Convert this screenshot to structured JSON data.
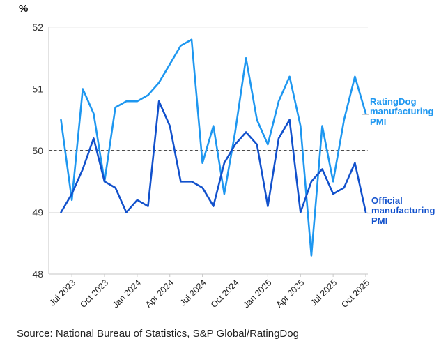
{
  "header": {
    "unit_label": "%"
  },
  "source": {
    "text": "Source: National Bureau of Statistics, S&P Global/RatingDog"
  },
  "colors": {
    "ratingdog_blue": "#1e97f0",
    "official_blue": "#1251cc",
    "threshold_dash": "#111111",
    "gridline": "#e8e8e8",
    "spine": "#c6c6c6",
    "ytick_text": "#333333",
    "xtick_text": "#1c1c1c"
  },
  "chart_data": {
    "type": "line",
    "title": "",
    "ylabel": "%",
    "xlabel": "",
    "ylim": [
      48,
      52
    ],
    "grid": true,
    "threshold": 50,
    "legend_position": "right-annotations",
    "yticks": [
      48,
      49,
      50,
      51,
      52
    ],
    "x": [
      "Jun 2023",
      "Jul 2023",
      "Aug 2023",
      "Sep 2023",
      "Oct 2023",
      "Nov 2023",
      "Dec 2023",
      "Jan 2024",
      "Feb 2024",
      "Mar 2024",
      "Apr 2024",
      "May 2024",
      "Jun 2024",
      "Jul 2024",
      "Aug 2024",
      "Sep 2024",
      "Oct 2024",
      "Nov 2024",
      "Dec 2024",
      "Jan 2025",
      "Feb 2025",
      "Mar 2025",
      "Apr 2025",
      "May 2025",
      "Jun 2025",
      "Jul 2025",
      "Aug 2025",
      "Sep 2025",
      "Oct 2025"
    ],
    "xtick_labels": [
      "Jul 2023",
      "Oct 2023",
      "Jan 2024",
      "Apr 2024",
      "Jul 2024",
      "Oct 2024",
      "Jan 2025",
      "Apr 2025",
      "Jul 2025",
      "Oct 2025"
    ],
    "xtick_indices": [
      1,
      4,
      7,
      10,
      13,
      16,
      19,
      22,
      25,
      28
    ],
    "series": [
      {
        "name": "RatingDog manufacturing PMI",
        "color": "#1e97f0",
        "values": [
          50.5,
          49.2,
          51.0,
          50.6,
          49.5,
          50.7,
          50.8,
          50.8,
          50.9,
          51.1,
          51.4,
          51.7,
          51.8,
          49.8,
          50.4,
          49.3,
          50.3,
          51.5,
          50.5,
          50.1,
          50.8,
          51.2,
          50.4,
          48.3,
          50.4,
          49.5,
          50.5,
          51.2,
          50.6
        ]
      },
      {
        "name": "Official manufacturing PMI",
        "color": "#1251cc",
        "values": [
          49.0,
          49.3,
          49.7,
          50.2,
          49.5,
          49.4,
          49.0,
          49.2,
          49.1,
          50.8,
          50.4,
          49.5,
          49.5,
          49.4,
          49.1,
          49.8,
          50.1,
          50.3,
          50.1,
          49.1,
          50.2,
          50.5,
          49.0,
          49.5,
          49.7,
          49.3,
          49.4,
          49.8,
          49.0
        ]
      }
    ]
  }
}
